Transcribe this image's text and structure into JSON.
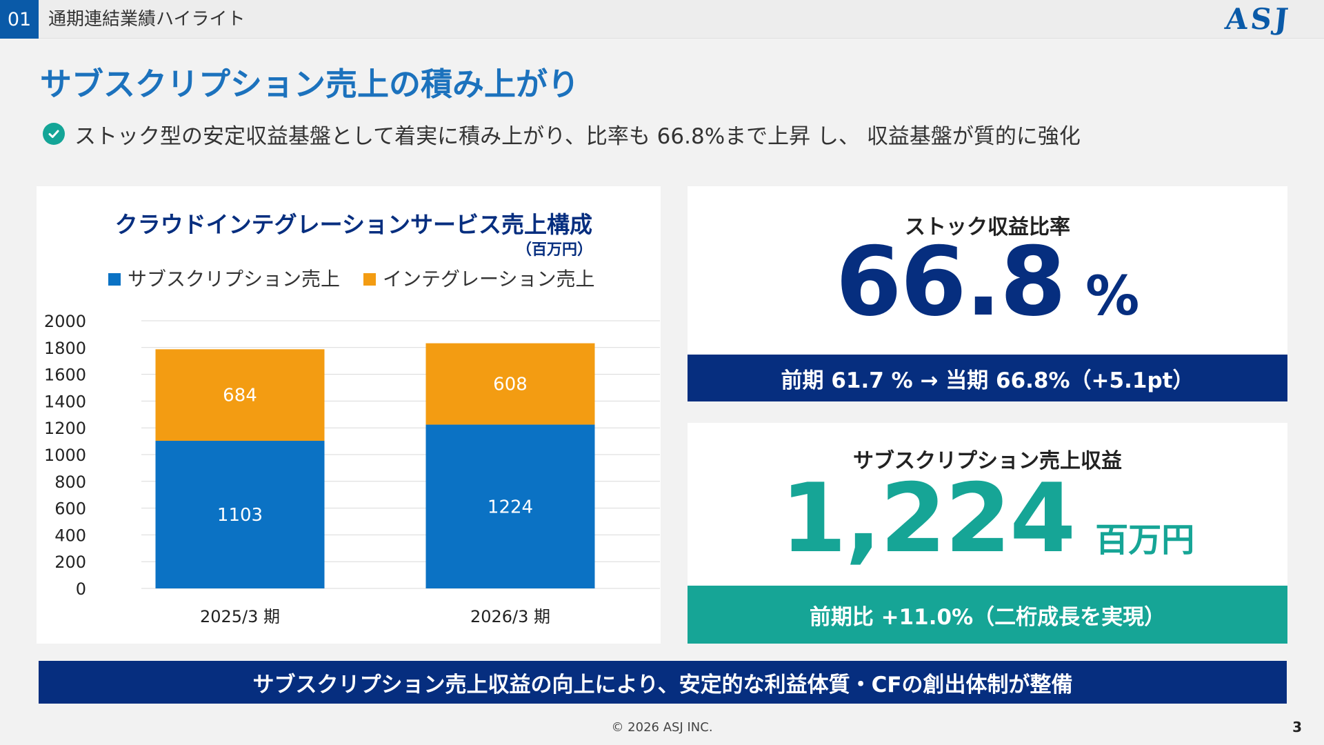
{
  "header": {
    "section_number": "01",
    "section_title": "通期連結業績ハイライト",
    "logo_text": "ASJ",
    "brand_color": "#0a5aa8"
  },
  "title": "サブスクリプション売上の積み上がり",
  "subtitle": {
    "icon": "check-circle-icon",
    "text": "ストック型の安定収益基盤として着実に積み上がり、比率も 66.8%まで上昇 し、 収益基盤が質的に強化"
  },
  "chart_data": {
    "type": "bar",
    "stacked": true,
    "title": "クラウドインテグレーションサービス売上構成",
    "unit": "（百万円）",
    "categories": [
      "2025/3 期",
      "2026/3 期"
    ],
    "series": [
      {
        "name": "サブスクリプション売上",
        "values": [
          1103,
          1224
        ],
        "color": "#0b72c4"
      },
      {
        "name": "インテグレーション売上",
        "values": [
          684,
          608
        ],
        "color": "#f39c12"
      }
    ],
    "yticks": [
      "0",
      "200",
      "400",
      "600",
      "800",
      "1000",
      "1200",
      "1400",
      "1600",
      "1800",
      "2000"
    ],
    "ylim": [
      0,
      2000
    ],
    "grid": true,
    "legend": "top"
  },
  "stock_ratio": {
    "label": "ストック収益比率",
    "value": "66.8",
    "unit": "%",
    "note": "前期 61.7 % → 当期 66.8%（+5.1pt）"
  },
  "subscription_revenue": {
    "label": "サブスクリプション売上収益",
    "value": "1,224",
    "unit": "百万円",
    "note": "前期比 +11.0%（二桁成長を実現）"
  },
  "banner": "サブスクリプション売上収益の向上により、安定的な利益体質・CFの創出体制が整備",
  "footer": "© 2026 ASJ INC.",
  "page_number": "3"
}
